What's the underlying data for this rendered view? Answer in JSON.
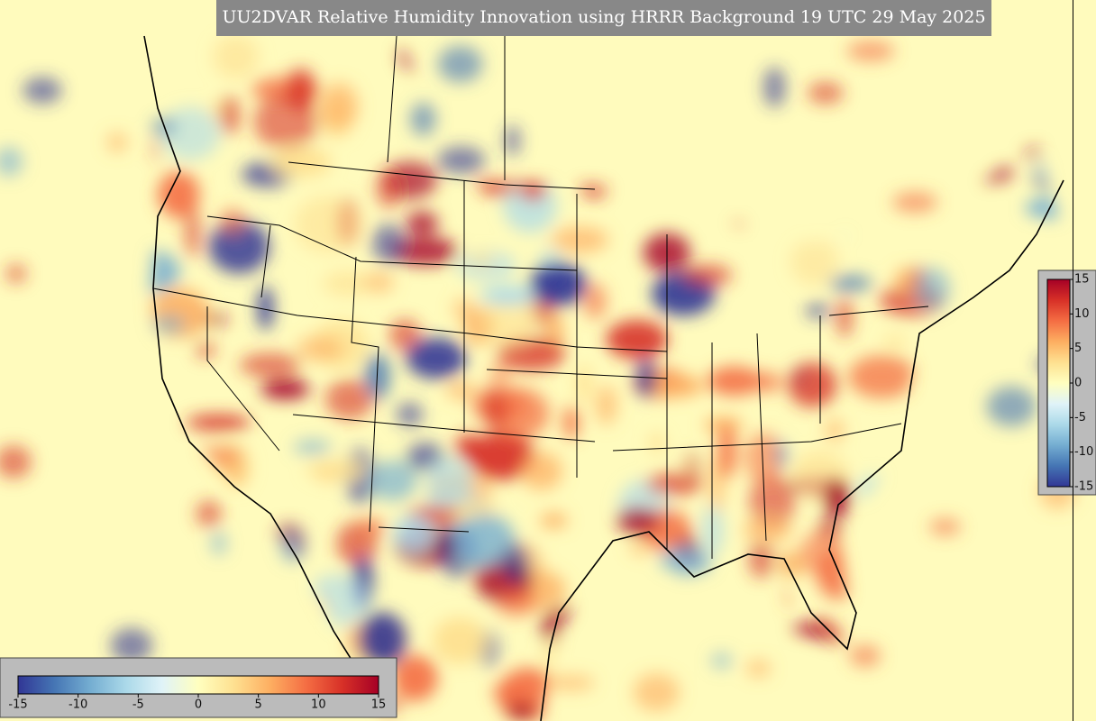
{
  "title": "UU2DVAR Relative Humidity Innovation using HRRR Background 19 UTC 29 May 2025",
  "colorbar": {
    "lim": [
      -15,
      15
    ],
    "ticks": [
      -15,
      -10,
      -5,
      0,
      5,
      10,
      15
    ],
    "colors": [
      "#313695",
      "#4575b4",
      "#74add1",
      "#abd9e9",
      "#e0f3f8",
      "#ffffbf",
      "#fee090",
      "#fdae61",
      "#f46d43",
      "#d73027",
      "#a50026"
    ]
  }
}
